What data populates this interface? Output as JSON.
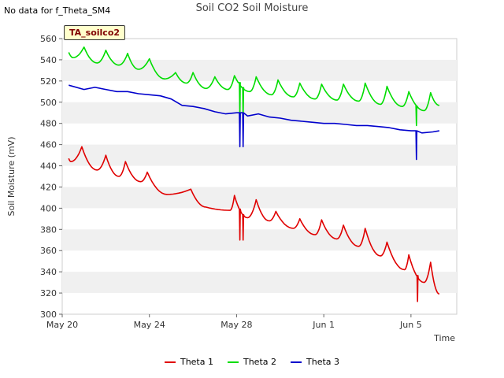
{
  "header": {
    "note": "No data for f_Theta_SM4",
    "title": "Soil CO2 Soil Moisture",
    "tag": "TA_soilco2"
  },
  "chart_data": {
    "type": "line",
    "xlabel": "Time",
    "ylabel": "Soil Moisture (mV)",
    "x_ticks": [
      "May 20",
      "May 24",
      "May 28",
      "Jun 1",
      "Jun 5"
    ],
    "x_tick_days": [
      0,
      4,
      8,
      12,
      16
    ],
    "xlim_days": [
      0,
      18.1
    ],
    "ylim": [
      300,
      560
    ],
    "y_ticks": [
      300,
      320,
      340,
      360,
      380,
      400,
      420,
      440,
      460,
      480,
      500,
      520,
      540,
      560
    ],
    "grid": "horizontal alternating bands",
    "legend": "bottom",
    "series": [
      {
        "name": "Theta 1",
        "color": "#e00000",
        "peaks": [
          [
            0.9,
            458
          ],
          [
            2.0,
            450
          ],
          [
            2.9,
            444
          ],
          [
            3.9,
            434
          ],
          [
            5.9,
            418
          ],
          [
            7.9,
            412
          ],
          [
            8.9,
            408
          ],
          [
            9.8,
            397
          ],
          [
            10.9,
            390
          ],
          [
            11.9,
            389
          ],
          [
            12.9,
            384
          ],
          [
            13.9,
            381
          ],
          [
            14.9,
            368
          ],
          [
            15.9,
            356
          ],
          [
            16.9,
            349
          ]
        ],
        "troughs": [
          [
            0.4,
            444
          ],
          [
            1.6,
            436
          ],
          [
            2.6,
            430
          ],
          [
            3.6,
            425
          ],
          [
            4.8,
            413
          ],
          [
            6.6,
            401
          ],
          [
            7.7,
            398
          ],
          [
            8.5,
            391
          ],
          [
            9.5,
            388
          ],
          [
            10.6,
            381
          ],
          [
            11.6,
            375
          ],
          [
            12.6,
            371
          ],
          [
            13.6,
            364
          ],
          [
            14.6,
            355
          ],
          [
            15.7,
            342
          ],
          [
            16.6,
            330
          ]
        ],
        "start": [
          0.3,
          447
        ],
        "end": [
          17.3,
          319
        ],
        "spikes": [
          [
            8.15,
            370
          ],
          [
            8.3,
            370
          ],
          [
            16.3,
            312
          ]
        ]
      },
      {
        "name": "Theta 2",
        "color": "#00dd00",
        "peaks": [
          [
            1.0,
            552
          ],
          [
            2.0,
            549
          ],
          [
            3.0,
            546
          ],
          [
            4.0,
            541
          ],
          [
            5.2,
            528
          ],
          [
            6.0,
            528
          ],
          [
            7.0,
            524
          ],
          [
            7.9,
            525
          ],
          [
            8.9,
            524
          ],
          [
            9.9,
            521
          ],
          [
            10.9,
            518
          ],
          [
            11.9,
            517
          ],
          [
            12.9,
            517
          ],
          [
            13.9,
            518
          ],
          [
            14.9,
            515
          ],
          [
            15.9,
            510
          ],
          [
            16.9,
            509
          ]
        ],
        "troughs": [
          [
            0.5,
            542
          ],
          [
            1.6,
            537
          ],
          [
            2.6,
            535
          ],
          [
            3.5,
            531
          ],
          [
            4.7,
            522
          ],
          [
            5.7,
            518
          ],
          [
            6.6,
            513
          ],
          [
            7.6,
            512
          ],
          [
            8.6,
            510
          ],
          [
            9.6,
            507
          ],
          [
            10.6,
            505
          ],
          [
            11.6,
            503
          ],
          [
            12.6,
            502
          ],
          [
            13.6,
            501
          ],
          [
            14.6,
            498
          ],
          [
            15.6,
            496
          ],
          [
            16.6,
            492
          ]
        ],
        "start": [
          0.3,
          547
        ],
        "end": [
          17.3,
          497
        ],
        "spikes": [
          [
            8.15,
            485
          ],
          [
            8.3,
            485
          ],
          [
            16.25,
            478
          ]
        ]
      },
      {
        "name": "Theta 3",
        "color": "#0000cc",
        "points": [
          [
            0.3,
            516
          ],
          [
            1.0,
            512
          ],
          [
            1.5,
            514
          ],
          [
            2.0,
            512
          ],
          [
            2.5,
            510
          ],
          [
            3.0,
            510
          ],
          [
            3.5,
            508
          ],
          [
            4.0,
            507
          ],
          [
            4.5,
            506
          ],
          [
            5.0,
            503
          ],
          [
            5.5,
            497
          ],
          [
            6.0,
            496
          ],
          [
            6.5,
            494
          ],
          [
            7.0,
            491
          ],
          [
            7.5,
            489
          ],
          [
            8.0,
            490
          ],
          [
            8.5,
            487
          ],
          [
            9.0,
            489
          ],
          [
            9.5,
            486
          ],
          [
            10.0,
            485
          ],
          [
            10.5,
            483
          ],
          [
            11.0,
            482
          ],
          [
            11.5,
            481
          ],
          [
            12.0,
            480
          ],
          [
            12.5,
            480
          ],
          [
            13.0,
            479
          ],
          [
            13.5,
            478
          ],
          [
            14.0,
            478
          ],
          [
            14.5,
            477
          ],
          [
            15.0,
            476
          ],
          [
            15.5,
            474
          ],
          [
            16.0,
            473
          ],
          [
            16.5,
            471
          ],
          [
            17.0,
            472
          ],
          [
            17.3,
            473
          ]
        ],
        "spikes": [
          [
            8.15,
            458
          ],
          [
            8.3,
            458
          ],
          [
            16.25,
            446
          ]
        ]
      }
    ]
  }
}
